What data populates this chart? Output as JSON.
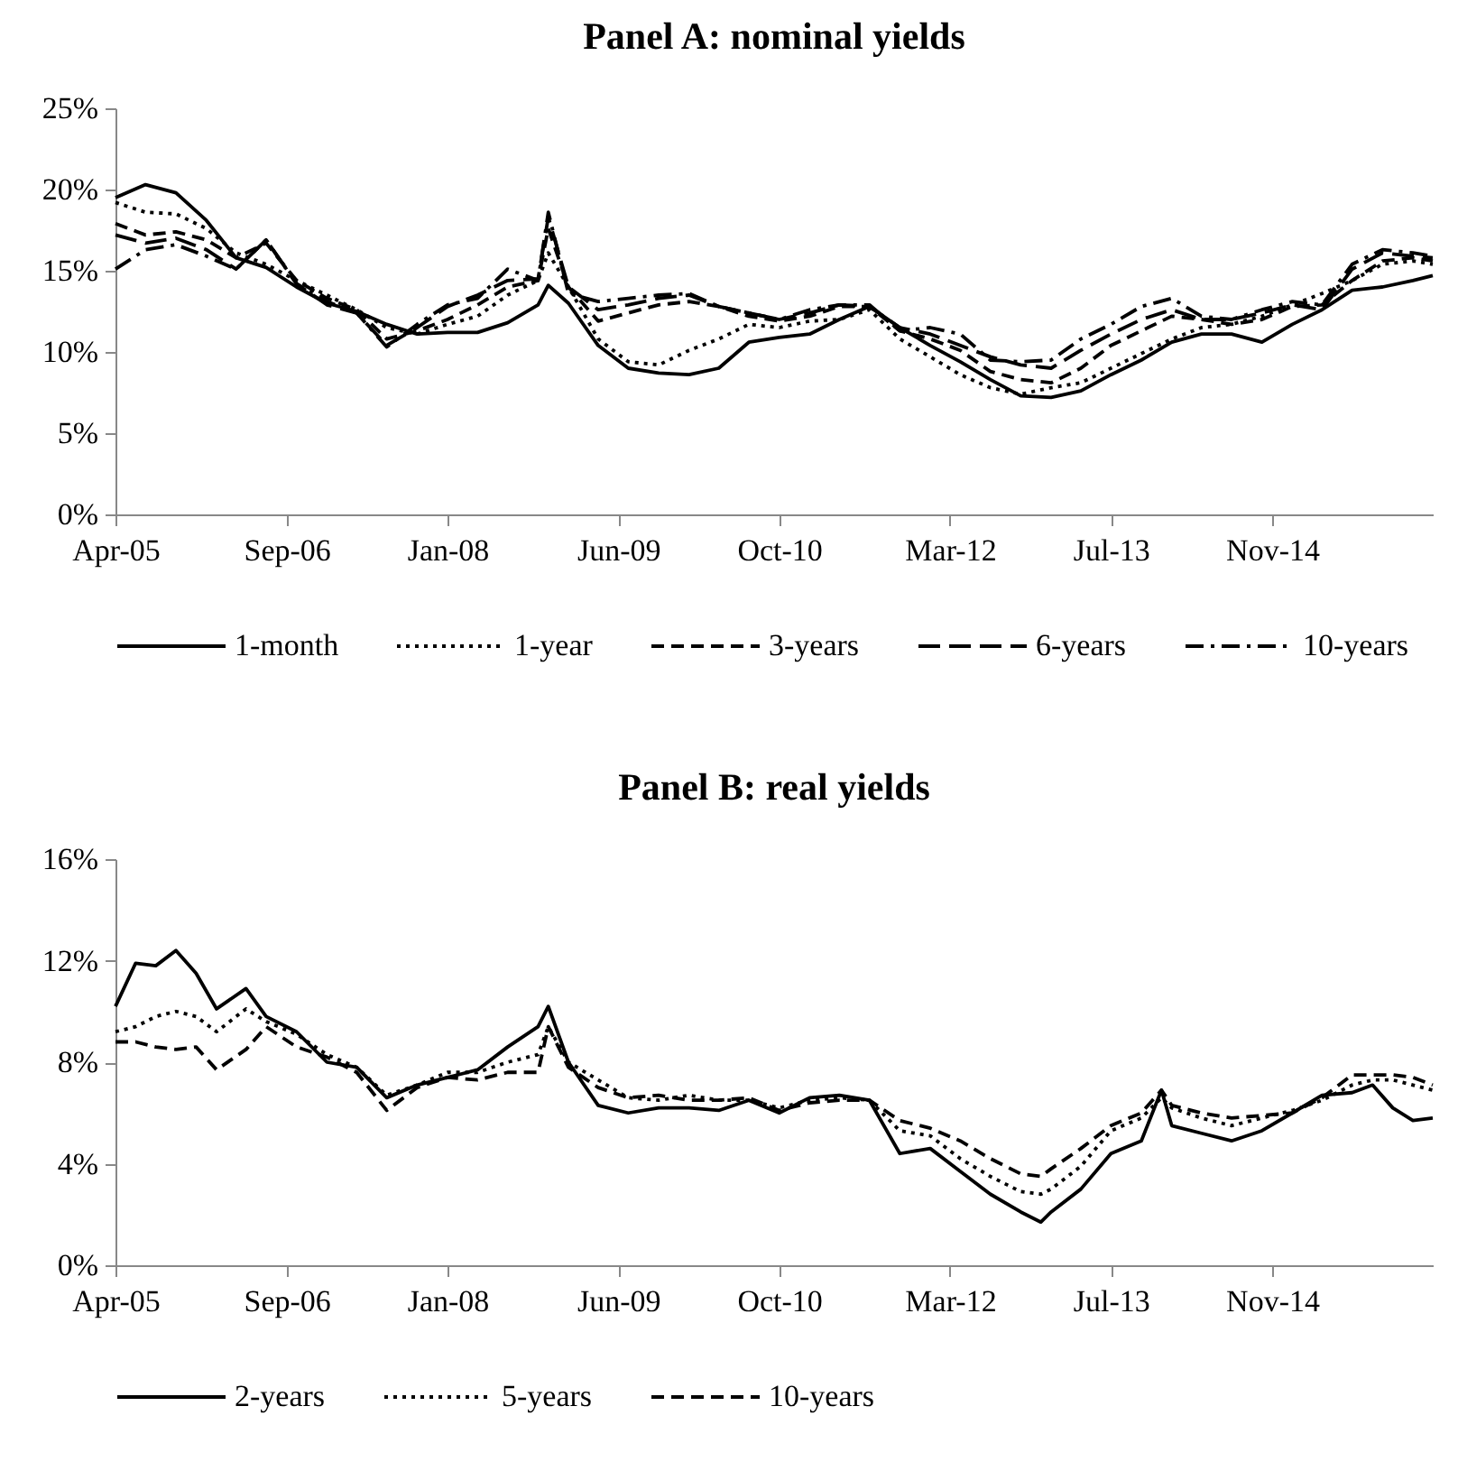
{
  "chart_data": [
    {
      "type": "line",
      "title": "Panel A: nominal yields",
      "legend": "bottom",
      "x": [
        "2005-04",
        "2005-07",
        "2005-10",
        "2006-01",
        "2006-04",
        "2006-07",
        "2006-10",
        "2007-01",
        "2007-04",
        "2007-07",
        "2007-10",
        "2008-01",
        "2008-04",
        "2008-07",
        "2008-10",
        "2008-11",
        "2009-01",
        "2009-04",
        "2009-07",
        "2009-10",
        "2010-01",
        "2010-04",
        "2010-07",
        "2010-10",
        "2011-01",
        "2011-04",
        "2011-07",
        "2011-10",
        "2012-01",
        "2012-04",
        "2012-07",
        "2012-10",
        "2013-01",
        "2013-04",
        "2013-07",
        "2013-10",
        "2014-01",
        "2014-04",
        "2014-07",
        "2014-10",
        "2015-01",
        "2015-04",
        "2015-07",
        "2015-10",
        "2016-01",
        "2016-03"
      ],
      "xlim": [
        "2005-04",
        "2016-03"
      ],
      "xticks": [
        {
          "value": "2005-04",
          "label": "Apr-05"
        },
        {
          "value": "2006-09",
          "label": "Sep-06"
        },
        {
          "value": "2008-01",
          "label": "Jan-08"
        },
        {
          "value": "2009-06",
          "label": "Jun-09"
        },
        {
          "value": "2010-10",
          "label": "Oct-10"
        },
        {
          "value": "2012-03",
          "label": "Mar-12"
        },
        {
          "value": "2013-07",
          "label": "Jul-13"
        },
        {
          "value": "2014-11",
          "label": "Nov-14"
        }
      ],
      "ylim": [
        0,
        25
      ],
      "yticks": [
        {
          "value": 0,
          "label": "0%"
        },
        {
          "value": 5,
          "label": "5%"
        },
        {
          "value": 10,
          "label": "10%"
        },
        {
          "value": 15,
          "label": "15%"
        },
        {
          "value": 20,
          "label": "20%"
        },
        {
          "value": 25,
          "label": "25%"
        }
      ],
      "series": [
        {
          "name": "1-month",
          "color": "#000000",
          "line_style": "solid",
          "values": [
            19.5,
            20.3,
            19.8,
            18.1,
            15.8,
            15.2,
            14.0,
            13.0,
            12.5,
            11.7,
            11.1,
            11.2,
            11.2,
            11.8,
            12.9,
            14.1,
            13.0,
            10.4,
            9.0,
            8.7,
            8.6,
            9.0,
            10.6,
            10.9,
            11.1,
            12.0,
            12.8,
            11.5,
            10.4,
            9.4,
            8.3,
            7.3,
            7.2,
            7.6,
            8.6,
            9.5,
            10.6,
            11.1,
            11.1,
            10.6,
            11.7,
            12.6,
            13.8,
            14.0,
            14.4,
            14.7
          ]
        },
        {
          "name": "1-year",
          "color": "#000000",
          "line_style": "dotted",
          "values": [
            19.2,
            18.6,
            18.5,
            17.6,
            16.1,
            15.4,
            14.4,
            13.5,
            12.6,
            11.5,
            11.1,
            11.7,
            12.2,
            13.5,
            14.4,
            16.1,
            14.0,
            10.8,
            9.4,
            9.2,
            10.1,
            10.8,
            11.7,
            11.5,
            11.9,
            12.0,
            12.6,
            10.8,
            9.7,
            8.6,
            7.8,
            7.4,
            7.8,
            8.1,
            9.0,
            9.9,
            10.8,
            11.5,
            11.7,
            12.2,
            12.9,
            13.6,
            14.4,
            15.4,
            15.6,
            15.4
          ]
        },
        {
          "name": "3-years",
          "color": "#000000",
          "line_style": "dashed",
          "values": [
            17.9,
            17.2,
            17.4,
            16.9,
            15.8,
            16.7,
            14.4,
            13.3,
            12.6,
            10.8,
            11.3,
            12.0,
            12.9,
            14.0,
            14.4,
            17.6,
            14.0,
            11.9,
            12.4,
            12.9,
            13.1,
            12.8,
            12.2,
            11.9,
            12.2,
            12.8,
            12.8,
            11.3,
            10.8,
            10.1,
            8.8,
            8.3,
            8.1,
            9.0,
            10.4,
            11.3,
            12.2,
            12.0,
            11.7,
            12.0,
            12.8,
            12.9,
            14.4,
            15.6,
            15.8,
            15.6
          ]
        },
        {
          "name": "6-years",
          "color": "#000000",
          "line_style": "longdash",
          "values": [
            17.2,
            16.7,
            17.0,
            16.3,
            15.1,
            16.9,
            14.2,
            12.9,
            12.4,
            10.4,
            11.5,
            12.8,
            13.5,
            14.4,
            14.5,
            18.3,
            14.0,
            12.6,
            12.9,
            13.3,
            13.5,
            12.8,
            12.4,
            12.0,
            12.4,
            12.9,
            12.8,
            11.5,
            11.1,
            10.4,
            9.7,
            9.2,
            9.0,
            10.1,
            11.1,
            12.0,
            12.6,
            12.0,
            12.0,
            12.4,
            12.9,
            12.6,
            15.1,
            16.1,
            15.9,
            15.8
          ]
        },
        {
          "name": "10-years",
          "color": "#000000",
          "line_style": "dashdot",
          "values": [
            15.1,
            16.3,
            16.6,
            15.9,
            15.1,
            16.9,
            14.2,
            13.1,
            12.4,
            10.3,
            11.7,
            12.9,
            13.3,
            15.1,
            14.4,
            18.6,
            13.6,
            13.1,
            13.3,
            13.5,
            13.6,
            12.8,
            12.4,
            12.0,
            12.6,
            12.9,
            12.9,
            11.3,
            11.5,
            11.1,
            9.5,
            9.4,
            9.5,
            10.8,
            11.7,
            12.8,
            13.3,
            12.2,
            12.0,
            12.6,
            13.1,
            12.9,
            15.4,
            16.3,
            16.1,
            15.9
          ]
        }
      ]
    },
    {
      "type": "line",
      "title": "Panel B: real yields",
      "legend": "bottom",
      "x": [
        "2005-04",
        "2005-06",
        "2005-08",
        "2005-10",
        "2005-12",
        "2006-02",
        "2006-05",
        "2006-07",
        "2006-10",
        "2007-01",
        "2007-04",
        "2007-07",
        "2007-10",
        "2008-01",
        "2008-04",
        "2008-07",
        "2008-10",
        "2008-11",
        "2009-01",
        "2009-04",
        "2009-07",
        "2009-10",
        "2010-01",
        "2010-04",
        "2010-07",
        "2010-10",
        "2011-01",
        "2011-04",
        "2011-07",
        "2011-10",
        "2012-01",
        "2012-04",
        "2012-07",
        "2012-10",
        "2012-12",
        "2013-01",
        "2013-04",
        "2013-07",
        "2013-10",
        "2013-12",
        "2014-01",
        "2014-04",
        "2014-07",
        "2014-10",
        "2015-01",
        "2015-04",
        "2015-07",
        "2015-09",
        "2015-11",
        "2016-01",
        "2016-03"
      ],
      "xlim": [
        "2005-04",
        "2016-03"
      ],
      "xticks": [
        {
          "value": "2005-04",
          "label": "Apr-05"
        },
        {
          "value": "2006-09",
          "label": "Sep-06"
        },
        {
          "value": "2008-01",
          "label": "Jan-08"
        },
        {
          "value": "2009-06",
          "label": "Jun-09"
        },
        {
          "value": "2010-10",
          "label": "Oct-10"
        },
        {
          "value": "2012-03",
          "label": "Mar-12"
        },
        {
          "value": "2013-07",
          "label": "Jul-13"
        },
        {
          "value": "2014-11",
          "label": "Nov-14"
        }
      ],
      "ylim": [
        0,
        16
      ],
      "yticks": [
        {
          "value": 0,
          "label": "0%"
        },
        {
          "value": 4,
          "label": "4%"
        },
        {
          "value": 8,
          "label": "8%"
        },
        {
          "value": 12,
          "label": "12%"
        },
        {
          "value": 16,
          "label": "16%"
        }
      ],
      "series": [
        {
          "name": "2-years",
          "color": "#000000",
          "line_style": "solid",
          "values": [
            10.2,
            11.9,
            11.8,
            12.4,
            11.5,
            10.1,
            10.9,
            9.8,
            9.2,
            8.0,
            7.8,
            6.6,
            7.1,
            7.4,
            7.7,
            8.6,
            9.4,
            10.2,
            8.0,
            6.3,
            6.0,
            6.2,
            6.2,
            6.1,
            6.5,
            6.0,
            6.6,
            6.7,
            6.5,
            4.4,
            4.6,
            3.7,
            2.8,
            2.1,
            1.7,
            2.1,
            3.0,
            4.4,
            4.9,
            6.9,
            5.5,
            5.2,
            4.9,
            5.3,
            6.0,
            6.7,
            6.8,
            7.1,
            6.2,
            5.7,
            5.8
          ]
        },
        {
          "name": "5-years",
          "color": "#000000",
          "line_style": "dotted",
          "values": [
            9.2,
            9.4,
            9.8,
            10.0,
            9.8,
            9.2,
            10.1,
            9.6,
            9.1,
            8.3,
            7.8,
            6.7,
            7.1,
            7.6,
            7.6,
            8.0,
            8.3,
            9.4,
            8.0,
            7.3,
            6.6,
            6.5,
            6.7,
            6.5,
            6.5,
            6.2,
            6.5,
            6.6,
            6.5,
            5.3,
            5.1,
            4.2,
            3.5,
            2.9,
            2.8,
            3.0,
            3.9,
            5.3,
            5.8,
            6.6,
            6.2,
            5.8,
            5.5,
            5.8,
            6.1,
            6.5,
            7.1,
            7.3,
            7.3,
            7.1,
            6.9
          ]
        },
        {
          "name": "10-years",
          "color": "#000000",
          "line_style": "dashed",
          "values": [
            8.8,
            8.8,
            8.6,
            8.5,
            8.6,
            7.7,
            8.5,
            9.4,
            8.6,
            8.2,
            7.6,
            6.1,
            7.0,
            7.4,
            7.3,
            7.6,
            7.6,
            9.4,
            7.8,
            7.0,
            6.6,
            6.7,
            6.5,
            6.5,
            6.6,
            6.1,
            6.4,
            6.5,
            6.5,
            5.7,
            5.4,
            4.9,
            4.2,
            3.6,
            3.5,
            3.8,
            4.6,
            5.5,
            6.0,
            6.9,
            6.3,
            6.0,
            5.8,
            5.9,
            6.0,
            6.6,
            7.5,
            7.5,
            7.5,
            7.4,
            7.1
          ]
        }
      ]
    }
  ]
}
